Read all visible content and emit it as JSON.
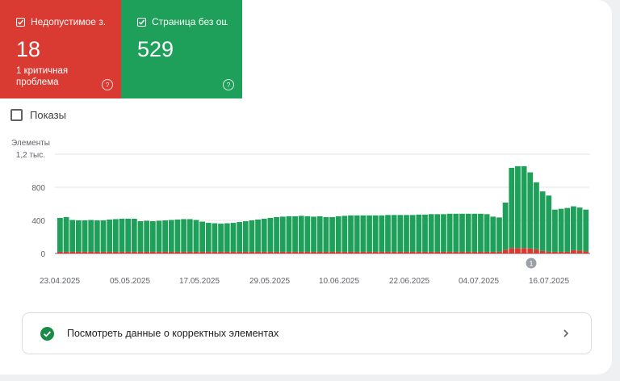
{
  "tiles": [
    {
      "label": "Недопустимое з...",
      "value": "18",
      "sub": "1 критичная проблема",
      "color": "#d93a32"
    },
    {
      "label": "Страница без ош...",
      "value": "529",
      "color": "#1fa05a"
    }
  ],
  "impressions_label": "Показы",
  "help_symbol": "?",
  "bottom_link": "Посмотреть данные о корректных элементах",
  "chart_data": {
    "type": "bar",
    "stacked": true,
    "ylabel": "Элементы",
    "y_ticks": [
      "0",
      "400",
      "800",
      "1,2 тыс."
    ],
    "ylim": [
      0,
      1200
    ],
    "x_tick_labels": [
      "23.04.2025",
      "05.05.2025",
      "17.05.2025",
      "29.05.2025",
      "10.06.2025",
      "22.06.2025",
      "04.07.2025",
      "16.07.2025"
    ],
    "annotation": "1",
    "series": [
      {
        "color": "#1fa05a",
        "values": [
          410,
          420,
          385,
          380,
          380,
          385,
          380,
          380,
          390,
          395,
          400,
          400,
          400,
          370,
          375,
          370,
          375,
          380,
          385,
          390,
          395,
          395,
          385,
          365,
          350,
          345,
          340,
          345,
          350,
          360,
          370,
          380,
          390,
          400,
          410,
          420,
          425,
          430,
          430,
          435,
          430,
          425,
          430,
          420,
          420,
          430,
          435,
          440,
          440,
          440,
          440,
          440,
          440,
          445,
          445,
          445,
          445,
          445,
          450,
          450,
          455,
          455,
          455,
          460,
          460,
          460,
          460,
          460,
          460,
          455,
          425,
          415,
          570,
          970,
          990,
          990,
          920,
          810,
          720,
          680,
          510,
          520,
          530,
          530,
          520,
          505
        ]
      },
      {
        "color": "#d93a32",
        "values": [
          20,
          20,
          20,
          20,
          20,
          20,
          20,
          20,
          20,
          20,
          20,
          20,
          20,
          20,
          20,
          20,
          20,
          20,
          20,
          20,
          20,
          20,
          20,
          20,
          20,
          20,
          20,
          20,
          20,
          20,
          20,
          20,
          20,
          20,
          20,
          20,
          20,
          20,
          20,
          20,
          20,
          20,
          20,
          20,
          20,
          20,
          20,
          20,
          20,
          20,
          20,
          20,
          20,
          20,
          20,
          20,
          20,
          20,
          20,
          20,
          20,
          20,
          20,
          20,
          20,
          20,
          20,
          20,
          20,
          20,
          20,
          20,
          45,
          65,
          65,
          65,
          60,
          50,
          30,
          20,
          20,
          20,
          20,
          40,
          35,
          25
        ]
      }
    ]
  }
}
